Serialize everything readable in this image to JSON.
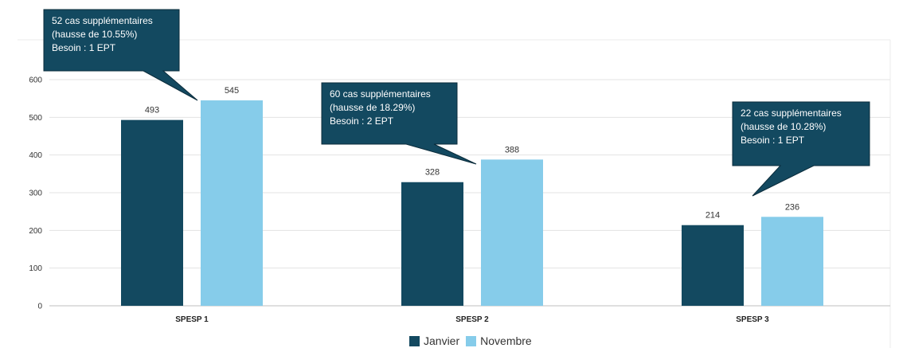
{
  "chart_data": {
    "type": "bar",
    "categories": [
      "SPESP 1",
      "SPESP 2",
      "SPESP 3"
    ],
    "series": [
      {
        "name": "Janvier",
        "values": [
          493,
          328,
          214
        ],
        "color": "#134960"
      },
      {
        "name": "Novembre",
        "values": [
          545,
          388,
          236
        ],
        "color": "#86CCEA"
      }
    ],
    "ylim": [
      0,
      600
    ],
    "yticks": [
      0,
      100,
      200,
      300,
      400,
      500,
      600
    ],
    "grid": true,
    "legend_position": "bottom-center",
    "callouts": [
      {
        "lines": [
          "52 cas supplémentaires",
          "(hausse de 10.55%)",
          "Besoin : 1 EPT"
        ],
        "category": "SPESP 1"
      },
      {
        "lines": [
          "60 cas supplémentaires",
          "(hausse de 18.29%)",
          "Besoin : 2 EPT"
        ],
        "category": "SPESP 2"
      },
      {
        "lines": [
          "22 cas supplémentaires",
          "(hausse de 10.28%)",
          "Besoin : 1 EPT"
        ],
        "category": "SPESP 3"
      }
    ],
    "callout_color": "#134960"
  }
}
